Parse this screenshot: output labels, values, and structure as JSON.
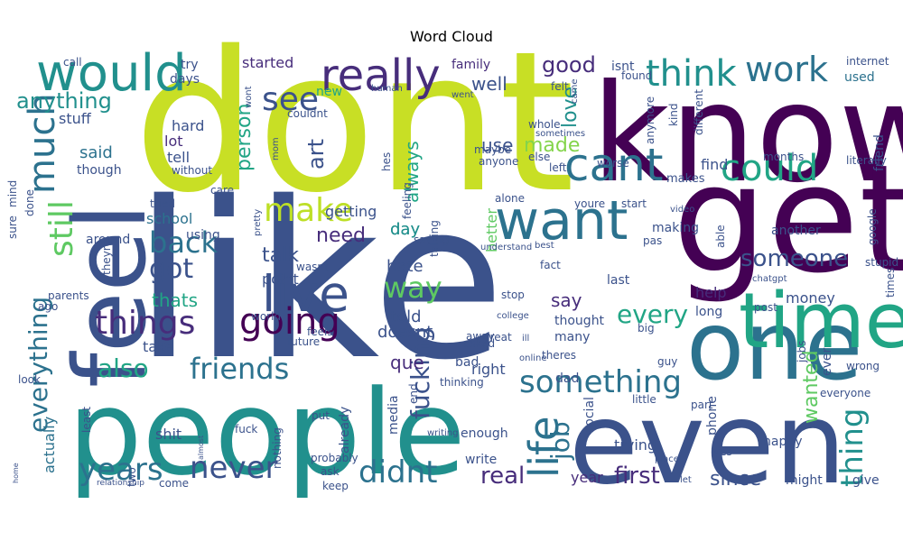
{
  "chart_data": {
    "type": "wordcloud",
    "title": "Word Cloud",
    "colormap": "viridis",
    "background": "#ffffff",
    "words": [
      {
        "text": "like",
        "color": "#3b528b"
      },
      {
        "text": "dont",
        "color": "#c8df25"
      },
      {
        "text": "know",
        "color": "#440154"
      },
      {
        "text": "people",
        "color": "#21908d"
      },
      {
        "text": "even",
        "color": "#3b528b"
      },
      {
        "text": "get",
        "color": "#440154"
      },
      {
        "text": "one",
        "color": "#2c728e"
      },
      {
        "text": "feel",
        "color": "#3b528b"
      },
      {
        "text": "want",
        "color": "#2c728e"
      },
      {
        "text": "time",
        "color": "#21a585"
      },
      {
        "text": "would",
        "color": "#21908d"
      },
      {
        "text": "really",
        "color": "#472d7b"
      },
      {
        "text": "cant",
        "color": "#2c728e"
      },
      {
        "text": "live",
        "color": "#3b528b"
      },
      {
        "text": "think",
        "color": "#21908d"
      },
      {
        "text": "work",
        "color": "#2c728e"
      },
      {
        "text": "could",
        "color": "#21a585"
      },
      {
        "text": "life",
        "color": "#2c728e"
      },
      {
        "text": "going",
        "color": "#440154"
      },
      {
        "text": "things",
        "color": "#472d7b"
      },
      {
        "text": "something",
        "color": "#2c728e"
      },
      {
        "text": "didnt",
        "color": "#2c728e"
      },
      {
        "text": "friends",
        "color": "#2c728e"
      },
      {
        "text": "never",
        "color": "#3b528b"
      },
      {
        "text": "make",
        "color": "#bddf26"
      },
      {
        "text": "see",
        "color": "#3b528b"
      },
      {
        "text": "back",
        "color": "#2c728e"
      },
      {
        "text": "got",
        "color": "#3b528b"
      },
      {
        "text": "way",
        "color": "#5ec962"
      },
      {
        "text": "someone",
        "color": "#3b528b"
      },
      {
        "text": "much",
        "color": "#2c728e"
      },
      {
        "text": "still",
        "color": "#5ec962"
      },
      {
        "text": "years",
        "color": "#2c728e"
      },
      {
        "text": "also",
        "color": "#21a585"
      },
      {
        "text": "everything",
        "color": "#2c728e"
      },
      {
        "text": "every",
        "color": "#21a585"
      },
      {
        "text": "fucking",
        "color": "#3b528b"
      },
      {
        "text": "job",
        "color": "#2c728e"
      },
      {
        "text": "anything",
        "color": "#21908d"
      },
      {
        "text": "good",
        "color": "#472d7b"
      },
      {
        "text": "person",
        "color": "#21a585"
      },
      {
        "text": "first",
        "color": "#472d7b"
      },
      {
        "text": "real",
        "color": "#472d7b"
      },
      {
        "text": "thing",
        "color": "#21908d"
      },
      {
        "text": "love",
        "color": "#21908d"
      },
      {
        "text": "art",
        "color": "#3b528b"
      },
      {
        "text": "made",
        "color": "#84d44b"
      },
      {
        "text": "talk",
        "color": "#3b528b"
      },
      {
        "text": "need",
        "color": "#472d7b"
      },
      {
        "text": "thats",
        "color": "#21a585"
      },
      {
        "text": "since",
        "color": "#3b528b"
      },
      {
        "text": "said",
        "color": "#2c728e"
      },
      {
        "text": "say",
        "color": "#472d7b"
      },
      {
        "text": "use",
        "color": "#3b528b"
      },
      {
        "text": "wanted",
        "color": "#5ec962"
      },
      {
        "text": "well",
        "color": "#3b528b"
      },
      {
        "text": "always",
        "color": "#21a585"
      },
      {
        "text": "told",
        "color": "#3b528b"
      },
      {
        "text": "hate",
        "color": "#3b528b"
      },
      {
        "text": "que",
        "color": "#472d7b"
      },
      {
        "text": "day",
        "color": "#21908d"
      },
      {
        "text": "used",
        "color": "#2c728e"
      },
      {
        "text": "tell",
        "color": "#3b528b"
      },
      {
        "text": "lot",
        "color": "#472d7b"
      },
      {
        "text": "hard",
        "color": "#3b528b"
      },
      {
        "text": "stuff",
        "color": "#3b528b"
      },
      {
        "text": "started",
        "color": "#472d7b"
      },
      {
        "text": "new",
        "color": "#21a585"
      },
      {
        "text": "try",
        "color": "#3b528b"
      },
      {
        "text": "days",
        "color": "#3b528b"
      },
      {
        "text": "family",
        "color": "#472d7b"
      },
      {
        "text": "isnt",
        "color": "#3b528b"
      },
      {
        "text": "school",
        "color": "#2c728e"
      },
      {
        "text": "point",
        "color": "#3b528b"
      },
      {
        "text": "around",
        "color": "#3b528b"
      },
      {
        "text": "doesnt",
        "color": "#3b528b"
      },
      {
        "text": "take",
        "color": "#3b528b"
      },
      {
        "text": "help",
        "color": "#472d7b"
      },
      {
        "text": "money",
        "color": "#3b528b"
      },
      {
        "text": "friend",
        "color": "#3b528b"
      },
      {
        "text": "find",
        "color": "#3b528b"
      },
      {
        "text": "getting",
        "color": "#3b528b"
      },
      {
        "text": "better",
        "color": "#5ec962"
      },
      {
        "text": "day",
        "color": "#21908d"
      },
      {
        "text": "year",
        "color": "#472d7b"
      },
      {
        "text": "trying",
        "color": "#3b528b"
      },
      {
        "text": "might",
        "color": "#3b528b"
      },
      {
        "text": "give",
        "color": "#3b528b"
      },
      {
        "text": "enough",
        "color": "#3b528b"
      },
      {
        "text": "right",
        "color": "#3b528b"
      },
      {
        "text": "shit",
        "color": "#3b528b"
      },
      {
        "text": "actually",
        "color": "#2c728e"
      },
      {
        "text": "last",
        "color": "#3b528b"
      },
      {
        "text": "another",
        "color": "#3b528b"
      },
      {
        "text": "makes",
        "color": "#3b528b"
      },
      {
        "text": "making",
        "color": "#3b528b"
      },
      {
        "text": "long",
        "color": "#3b528b"
      },
      {
        "text": "post",
        "color": "#3b528b"
      },
      {
        "text": "ever",
        "color": "#3b528b"
      },
      {
        "text": "everyone",
        "color": "#3b528b"
      },
      {
        "text": "wrong",
        "color": "#3b528b"
      },
      {
        "text": "guy",
        "color": "#3b528b"
      },
      {
        "text": "dad",
        "color": "#3b528b"
      },
      {
        "text": "little",
        "color": "#3b528b"
      },
      {
        "text": "social",
        "color": "#3b528b"
      },
      {
        "text": "thought",
        "color": "#3b528b"
      },
      {
        "text": "many",
        "color": "#3b528b"
      },
      {
        "text": "bad",
        "color": "#3b528b"
      },
      {
        "text": "theres",
        "color": "#3b528b"
      },
      {
        "text": "asked",
        "color": "#3b528b"
      },
      {
        "text": "great",
        "color": "#3b528b"
      },
      {
        "text": "end",
        "color": "#3b528b"
      },
      {
        "text": "media",
        "color": "#3b528b"
      },
      {
        "text": "already",
        "color": "#3b528b"
      },
      {
        "text": "nothing",
        "color": "#3b528b"
      },
      {
        "text": "probably",
        "color": "#3b528b"
      },
      {
        "text": "put",
        "color": "#3b528b"
      },
      {
        "text": "ask",
        "color": "#3b528b"
      },
      {
        "text": "keep",
        "color": "#3b528b"
      },
      {
        "text": "come",
        "color": "#3b528b"
      },
      {
        "text": "fuck",
        "color": "#3b528b"
      },
      {
        "text": "two",
        "color": "#3b528b"
      },
      {
        "text": "least",
        "color": "#3b528b"
      },
      {
        "text": "look",
        "color": "#3b528b"
      },
      {
        "text": "parents",
        "color": "#3b528b"
      },
      {
        "text": "ago",
        "color": "#3b528b"
      },
      {
        "text": "using",
        "color": "#3b528b"
      },
      {
        "text": "world",
        "color": "#3b528b"
      },
      {
        "text": "future",
        "color": "#3b528b"
      },
      {
        "text": "feels",
        "color": "#3b528b"
      },
      {
        "text": "wasnt",
        "color": "#3b528b"
      },
      {
        "text": "tried",
        "color": "#3b528b"
      },
      {
        "text": "though",
        "color": "#3b528b"
      },
      {
        "text": "without",
        "color": "#3b528b"
      },
      {
        "text": "care",
        "color": "#3b528b"
      },
      {
        "text": "mind",
        "color": "#3b528b"
      },
      {
        "text": "sure",
        "color": "#3b528b"
      },
      {
        "text": "done",
        "color": "#3b528b"
      },
      {
        "text": "theyre",
        "color": "#3b528b"
      },
      {
        "text": "call",
        "color": "#3b528b"
      },
      {
        "text": "wont",
        "color": "#3b528b"
      },
      {
        "text": "human",
        "color": "#3b528b"
      },
      {
        "text": "couldnt",
        "color": "#3b528b"
      },
      {
        "text": "mom",
        "color": "#3b528b"
      },
      {
        "text": "pretty",
        "color": "#3b528b"
      },
      {
        "text": "hes",
        "color": "#3b528b"
      },
      {
        "text": "feeling",
        "color": "#3b528b"
      },
      {
        "text": "saying",
        "color": "#3b528b"
      },
      {
        "text": "talking",
        "color": "#3b528b"
      },
      {
        "text": "anyone",
        "color": "#3b528b"
      },
      {
        "text": "maybe",
        "color": "#3b528b"
      },
      {
        "text": "went",
        "color": "#3b528b"
      },
      {
        "text": "felt",
        "color": "#3b528b"
      },
      {
        "text": "came",
        "color": "#3b528b"
      },
      {
        "text": "whole",
        "color": "#3b528b"
      },
      {
        "text": "sometimes",
        "color": "#3b528b"
      },
      {
        "text": "else",
        "color": "#3b528b"
      },
      {
        "text": "left",
        "color": "#3b528b"
      },
      {
        "text": "worse",
        "color": "#3b528b"
      },
      {
        "text": "found",
        "color": "#3b528b"
      },
      {
        "text": "anymore",
        "color": "#3b528b"
      },
      {
        "text": "kind",
        "color": "#3b528b"
      },
      {
        "text": "different",
        "color": "#3b528b"
      },
      {
        "text": "months",
        "color": "#3b528b"
      },
      {
        "text": "literally",
        "color": "#3b528b"
      },
      {
        "text": "internet",
        "color": "#3b528b"
      },
      {
        "text": "alone",
        "color": "#3b528b"
      },
      {
        "text": "youre",
        "color": "#3b528b"
      },
      {
        "text": "start",
        "color": "#3b528b"
      },
      {
        "text": "video",
        "color": "#3b528b"
      },
      {
        "text": "able",
        "color": "#3b528b"
      },
      {
        "text": "google",
        "color": "#3b528b"
      },
      {
        "text": "stupid",
        "color": "#3b528b"
      },
      {
        "text": "times",
        "color": "#3b528b"
      },
      {
        "text": "pas",
        "color": "#3b528b"
      },
      {
        "text": "understand",
        "color": "#3b528b"
      },
      {
        "text": "best",
        "color": "#3b528b"
      },
      {
        "text": "fact",
        "color": "#3b528b"
      },
      {
        "text": "college",
        "color": "#3b528b"
      },
      {
        "text": "stop",
        "color": "#3b528b"
      },
      {
        "text": "chatgpt",
        "color": "#3b528b"
      },
      {
        "text": "big",
        "color": "#3b528b"
      },
      {
        "text": "jobs",
        "color": "#3b528b"
      },
      {
        "text": "away",
        "color": "#3b528b"
      },
      {
        "text": "thinking",
        "color": "#3b528b"
      },
      {
        "text": "online",
        "color": "#3b528b"
      },
      {
        "text": "ill",
        "color": "#3b528b"
      },
      {
        "text": "write",
        "color": "#3b528b"
      },
      {
        "text": "writing",
        "color": "#3b528b"
      },
      {
        "text": "place",
        "color": "#3b528b"
      },
      {
        "text": "yes",
        "color": "#3b528b"
      },
      {
        "text": "happy",
        "color": "#3b528b"
      },
      {
        "text": "part",
        "color": "#3b528b"
      },
      {
        "text": "phone",
        "color": "#3b528b"
      },
      {
        "text": "let",
        "color": "#3b528b"
      },
      {
        "text": "almost",
        "color": "#3b528b"
      },
      {
        "text": "home",
        "color": "#3b528b"
      },
      {
        "text": "relationship",
        "color": "#3b528b"
      },
      {
        "text": "problem",
        "color": "#3b528b"
      },
      {
        "text": "together",
        "color": "#3b528b"
      }
    ]
  }
}
